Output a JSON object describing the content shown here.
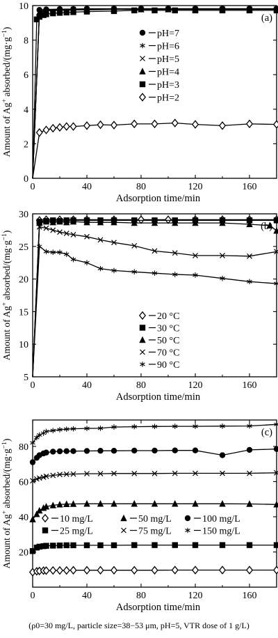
{
  "chart_data": [
    {
      "type": "line",
      "panel_label": "(a)",
      "xlabel": "Adsorption time/min",
      "ylabel": "Amount of Ag+ absorbed/(mg·g−1)",
      "xlim": [
        0,
        180
      ],
      "ylim": [
        0,
        10
      ],
      "xticks": [
        0,
        40,
        80,
        120,
        160
      ],
      "yticks": [
        0,
        2,
        4,
        6,
        8,
        10
      ],
      "legend_position": "upper-center",
      "series": [
        {
          "name": "pH=7",
          "marker": "circle",
          "x": [
            0,
            5,
            10,
            20,
            30,
            40,
            60,
            80,
            100,
            120,
            140,
            160,
            180
          ],
          "y": [
            0,
            9.75,
            9.78,
            9.8,
            9.8,
            9.82,
            9.82,
            9.82,
            9.82,
            9.82,
            9.82,
            9.82,
            9.82
          ]
        },
        {
          "name": "pH=6",
          "marker": "star",
          "x": [
            0,
            5,
            10,
            20,
            30,
            40,
            60,
            80,
            100,
            120,
            140,
            160,
            180
          ],
          "y": [
            0,
            9.72,
            9.76,
            9.78,
            9.8,
            9.8,
            9.8,
            9.82,
            9.82,
            9.82,
            9.82,
            9.82,
            9.82
          ]
        },
        {
          "name": "pH=5",
          "marker": "x",
          "x": [
            0,
            5,
            10,
            20,
            30,
            40,
            60,
            80,
            100,
            120,
            140,
            160,
            180
          ],
          "y": [
            0,
            9.65,
            9.72,
            9.75,
            9.78,
            9.78,
            9.8,
            9.8,
            9.8,
            9.8,
            9.8,
            9.8,
            9.8
          ]
        },
        {
          "name": "pH=4",
          "marker": "triangle",
          "x": [
            0,
            5,
            10,
            20,
            30,
            40,
            60,
            80,
            100,
            120,
            140,
            160,
            180
          ],
          "y": [
            0,
            9.6,
            9.7,
            9.72,
            9.75,
            9.75,
            9.78,
            9.78,
            9.78,
            9.78,
            9.78,
            9.78,
            9.78
          ]
        },
        {
          "name": "pH=3",
          "marker": "square",
          "x": [
            0,
            3,
            5,
            8,
            10,
            15,
            20,
            25,
            30,
            40,
            60,
            75,
            90,
            105,
            120,
            140,
            160,
            180
          ],
          "y": [
            0,
            9.2,
            9.35,
            9.45,
            9.5,
            9.55,
            9.58,
            9.6,
            9.62,
            9.65,
            9.68,
            9.72,
            9.72,
            9.72,
            9.72,
            9.72,
            9.72,
            9.72
          ]
        },
        {
          "name": "pH=2",
          "marker": "diamond",
          "x": [
            0,
            5,
            10,
            15,
            20,
            25,
            30,
            40,
            50,
            60,
            75,
            90,
            105,
            120,
            140,
            160,
            180
          ],
          "y": [
            0,
            2.65,
            2.8,
            2.9,
            2.95,
            3.0,
            3.0,
            3.05,
            3.1,
            3.08,
            3.15,
            3.15,
            3.2,
            3.12,
            3.05,
            3.15,
            3.12
          ]
        }
      ]
    },
    {
      "type": "line",
      "panel_label": "(b)",
      "xlabel": "Adsorption time/min",
      "ylabel": "Amount of Ag+ absorbed/(mg·g−1)",
      "xlim": [
        0,
        180
      ],
      "ylim": [
        5,
        30
      ],
      "xticks": [
        0,
        40,
        80,
        120,
        160
      ],
      "yticks": [
        5,
        10,
        15,
        20,
        25,
        30
      ],
      "legend_position": "lower-center",
      "series": [
        {
          "name": "20 °C",
          "marker": "diamond",
          "x": [
            0,
            5,
            10,
            20,
            30,
            40,
            60,
            80,
            100,
            120,
            140,
            160,
            180
          ],
          "y": [
            5,
            29.0,
            29.1,
            29.1,
            29.1,
            29.1,
            29.1,
            29.1,
            29.1,
            29.1,
            29.1,
            29.1,
            29.1
          ]
        },
        {
          "name": "30 °C",
          "marker": "square",
          "x": [
            0,
            5,
            10,
            15,
            20,
            25,
            30,
            40,
            50,
            60,
            75,
            90,
            105,
            120,
            140,
            160,
            180
          ],
          "y": [
            5,
            28.8,
            28.9,
            29.0,
            28.9,
            29.0,
            29.0,
            29.0,
            29.0,
            29.0,
            29.0,
            29.0,
            29.0,
            29.0,
            29.0,
            29.0,
            29.0
          ]
        },
        {
          "name": "50 °C",
          "marker": "triangle",
          "x": [
            0,
            5,
            10,
            15,
            20,
            25,
            30,
            40,
            50,
            60,
            75,
            90,
            105,
            120,
            140,
            160,
            175,
            180
          ],
          "y": [
            5,
            28.6,
            28.8,
            28.7,
            28.8,
            28.7,
            28.8,
            28.7,
            28.7,
            28.7,
            28.6,
            28.6,
            28.6,
            28.6,
            28.6,
            28.4,
            28.2,
            27.4
          ]
        },
        {
          "name": "70 °C",
          "marker": "x",
          "x": [
            0,
            5,
            10,
            15,
            20,
            25,
            30,
            40,
            50,
            60,
            75,
            90,
            105,
            120,
            140,
            160,
            180
          ],
          "y": [
            5,
            28.0,
            27.8,
            27.5,
            27.2,
            27.0,
            26.8,
            26.5,
            26.0,
            25.6,
            25.1,
            24.3,
            24.0,
            23.6,
            23.6,
            23.5,
            24.2
          ]
        },
        {
          "name": "90 °C",
          "marker": "star",
          "x": [
            0,
            5,
            10,
            15,
            20,
            25,
            30,
            40,
            50,
            60,
            75,
            90,
            105,
            120,
            140,
            160,
            180
          ],
          "y": [
            5,
            25.0,
            24.2,
            24.1,
            24.1,
            23.8,
            23.0,
            22.5,
            21.6,
            21.3,
            21.1,
            20.9,
            20.7,
            20.6,
            20.1,
            19.6,
            19.3
          ]
        }
      ]
    },
    {
      "type": "line",
      "panel_label": "(c)",
      "xlabel": "Adsorption time/min",
      "ylabel": "Amount of Ag+ absorbed/(mg·g−1)",
      "xlim": [
        0,
        180
      ],
      "ylim": [
        0,
        95
      ],
      "xticks": [
        0,
        40,
        80,
        120,
        160
      ],
      "yticks": [
        20,
        40,
        60,
        80
      ],
      "legend_position": "lower-center",
      "series": [
        {
          "name": "10 mg/L",
          "marker": "diamond",
          "x": [
            0,
            3,
            5,
            8,
            10,
            15,
            20,
            25,
            30,
            40,
            50,
            60,
            75,
            90,
            105,
            120,
            140,
            160,
            180
          ],
          "y": [
            8.5,
            9.0,
            9.2,
            9.4,
            9.4,
            9.5,
            9.5,
            9.5,
            9.6,
            9.6,
            9.6,
            9.6,
            9.6,
            9.6,
            9.7,
            9.7,
            9.7,
            9.7,
            9.7
          ]
        },
        {
          "name": "25 mg/L",
          "marker": "square",
          "x": [
            0,
            3,
            5,
            8,
            10,
            15,
            20,
            25,
            30,
            40,
            50,
            60,
            75,
            90,
            105,
            120,
            140,
            160,
            180
          ],
          "y": [
            20.5,
            22.5,
            23.0,
            23.3,
            23.5,
            23.6,
            23.7,
            23.8,
            23.8,
            23.8,
            23.8,
            23.8,
            23.9,
            23.9,
            23.9,
            23.9,
            23.9,
            23.9,
            23.9
          ]
        },
        {
          "name": "50 mg/L",
          "marker": "triangle",
          "x": [
            0,
            3,
            5,
            8,
            10,
            15,
            20,
            25,
            30,
            40,
            50,
            60,
            75,
            90,
            105,
            120,
            140,
            160,
            180
          ],
          "y": [
            38.5,
            41.5,
            43.5,
            45.0,
            45.8,
            46.5,
            47.0,
            47.2,
            47.3,
            47.4,
            47.4,
            47.4,
            47.4,
            47.4,
            47.4,
            47.4,
            47.4,
            47.3,
            47.0
          ]
        },
        {
          "name": "75 mg/L",
          "marker": "x",
          "x": [
            0,
            3,
            5,
            8,
            10,
            15,
            20,
            25,
            30,
            40,
            50,
            60,
            75,
            90,
            105,
            120,
            140,
            160,
            180
          ],
          "y": [
            60.5,
            61.5,
            62.0,
            62.5,
            63.0,
            63.5,
            64.0,
            64.2,
            64.3,
            64.5,
            64.5,
            64.6,
            64.6,
            64.6,
            64.7,
            64.7,
            64.7,
            64.7,
            65.0
          ]
        },
        {
          "name": "100 mg/L",
          "marker": "circle",
          "x": [
            0,
            3,
            5,
            8,
            10,
            15,
            20,
            25,
            30,
            40,
            50,
            60,
            75,
            90,
            105,
            120,
            140,
            160,
            180
          ],
          "y": [
            71.0,
            73.5,
            75.0,
            76.0,
            76.5,
            77.0,
            77.2,
            77.3,
            77.3,
            77.4,
            77.5,
            77.5,
            77.6,
            77.6,
            77.7,
            77.7,
            75.0,
            78.0,
            78.5
          ]
        },
        {
          "name": "150 mg/L",
          "marker": "star",
          "x": [
            0,
            3,
            5,
            8,
            10,
            15,
            20,
            25,
            30,
            40,
            50,
            60,
            75,
            90,
            105,
            120,
            140,
            160,
            180
          ],
          "y": [
            82.0,
            85.0,
            86.5,
            87.5,
            88.5,
            89.0,
            89.5,
            89.8,
            90.0,
            90.2,
            90.3,
            91.0,
            91.2,
            91.3,
            91.4,
            91.4,
            91.5,
            91.6,
            92.5
          ]
        }
      ]
    }
  ],
  "caption": "(ρ0=30 mg/L, particle size=38−53 μm, pH=5, VTR dose of 1 g/L)"
}
